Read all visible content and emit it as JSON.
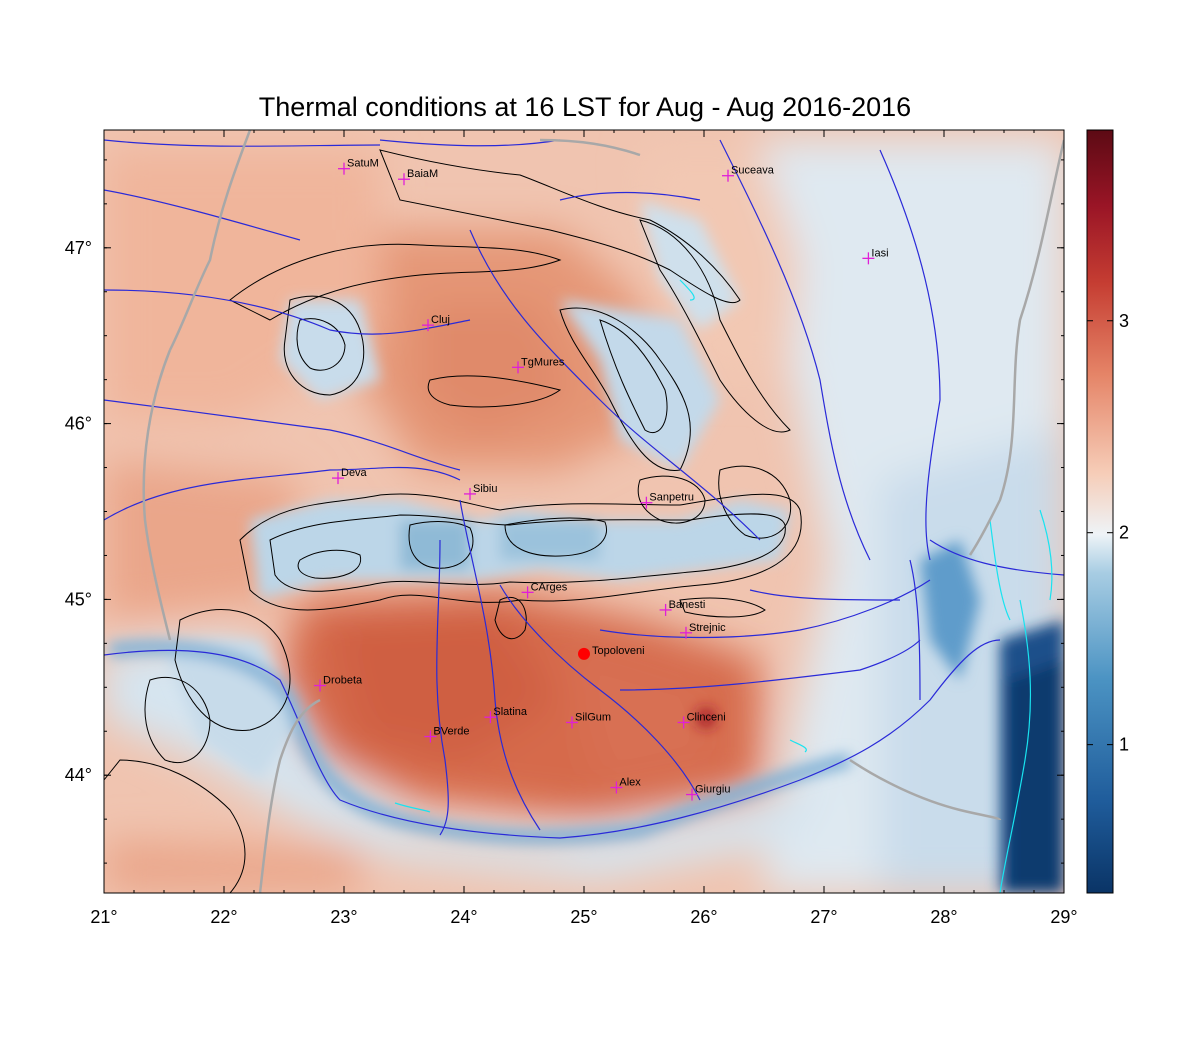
{
  "title": "Thermal conditions at 16 LST for Aug - Aug  2016-2016",
  "map": {
    "lon_range": [
      21,
      29
    ],
    "lat_range": [
      43.33,
      47.67
    ],
    "lon_ticks": [
      {
        "v": 21,
        "label": "21°"
      },
      {
        "v": 22,
        "label": "22°"
      },
      {
        "v": 23,
        "label": "23°"
      },
      {
        "v": 24,
        "label": "24°"
      },
      {
        "v": 25,
        "label": "25°"
      },
      {
        "v": 26,
        "label": "26°"
      },
      {
        "v": 27,
        "label": "27°"
      },
      {
        "v": 28,
        "label": "28°"
      },
      {
        "v": 29,
        "label": "29°"
      }
    ],
    "lat_ticks": [
      {
        "v": 44,
        "label": "44°"
      },
      {
        "v": 45,
        "label": "45°"
      },
      {
        "v": 46,
        "label": "46°"
      },
      {
        "v": 47,
        "label": "47°"
      }
    ],
    "cities": [
      {
        "name": "SatuM",
        "lon": 23.0,
        "lat": 47.45
      },
      {
        "name": "BaiaM",
        "lon": 23.5,
        "lat": 47.39
      },
      {
        "name": "Suceava",
        "lon": 26.2,
        "lat": 47.41
      },
      {
        "name": "Iasi",
        "lon": 27.37,
        "lat": 46.94
      },
      {
        "name": "Cluj",
        "lon": 23.7,
        "lat": 46.56
      },
      {
        "name": "TgMures",
        "lon": 24.45,
        "lat": 46.32
      },
      {
        "name": "Deva",
        "lon": 22.95,
        "lat": 45.69
      },
      {
        "name": "Sibiu",
        "lon": 24.05,
        "lat": 45.6
      },
      {
        "name": "Sanpetru",
        "lon": 25.52,
        "lat": 45.55
      },
      {
        "name": "CArges",
        "lon": 24.53,
        "lat": 45.04
      },
      {
        "name": "Banesti",
        "lon": 25.68,
        "lat": 44.94
      },
      {
        "name": "Strejnic",
        "lon": 25.85,
        "lat": 44.81
      },
      {
        "name": "Drobeta",
        "lon": 22.8,
        "lat": 44.51
      },
      {
        "name": "Slatina",
        "lon": 24.22,
        "lat": 44.33
      },
      {
        "name": "BVerde",
        "lon": 23.72,
        "lat": 44.22
      },
      {
        "name": "SilGum",
        "lon": 24.9,
        "lat": 44.3
      },
      {
        "name": "Clinceni",
        "lon": 25.83,
        "lat": 44.3
      },
      {
        "name": "Alex",
        "lon": 25.27,
        "lat": 43.93
      },
      {
        "name": "Giurgiu",
        "lon": 25.9,
        "lat": 43.89
      }
    ],
    "highlight_site": {
      "name": "Topoloveni",
      "lon": 25.0,
      "lat": 44.69,
      "color": "#ff0000"
    }
  },
  "colorbar": {
    "ticks": [
      {
        "v": 1,
        "label": "1"
      },
      {
        "v": 2,
        "label": "2"
      },
      {
        "v": 3,
        "label": "3"
      }
    ],
    "min": 0.3,
    "max": 3.9,
    "colors": [
      "#0a3466",
      "#1f5c9b",
      "#4292c6",
      "#9ecae1",
      "#eef3f7",
      "#f4c0a8",
      "#e07b5f",
      "#c03a2f",
      "#8c0d23",
      "#5c0a14"
    ]
  }
}
